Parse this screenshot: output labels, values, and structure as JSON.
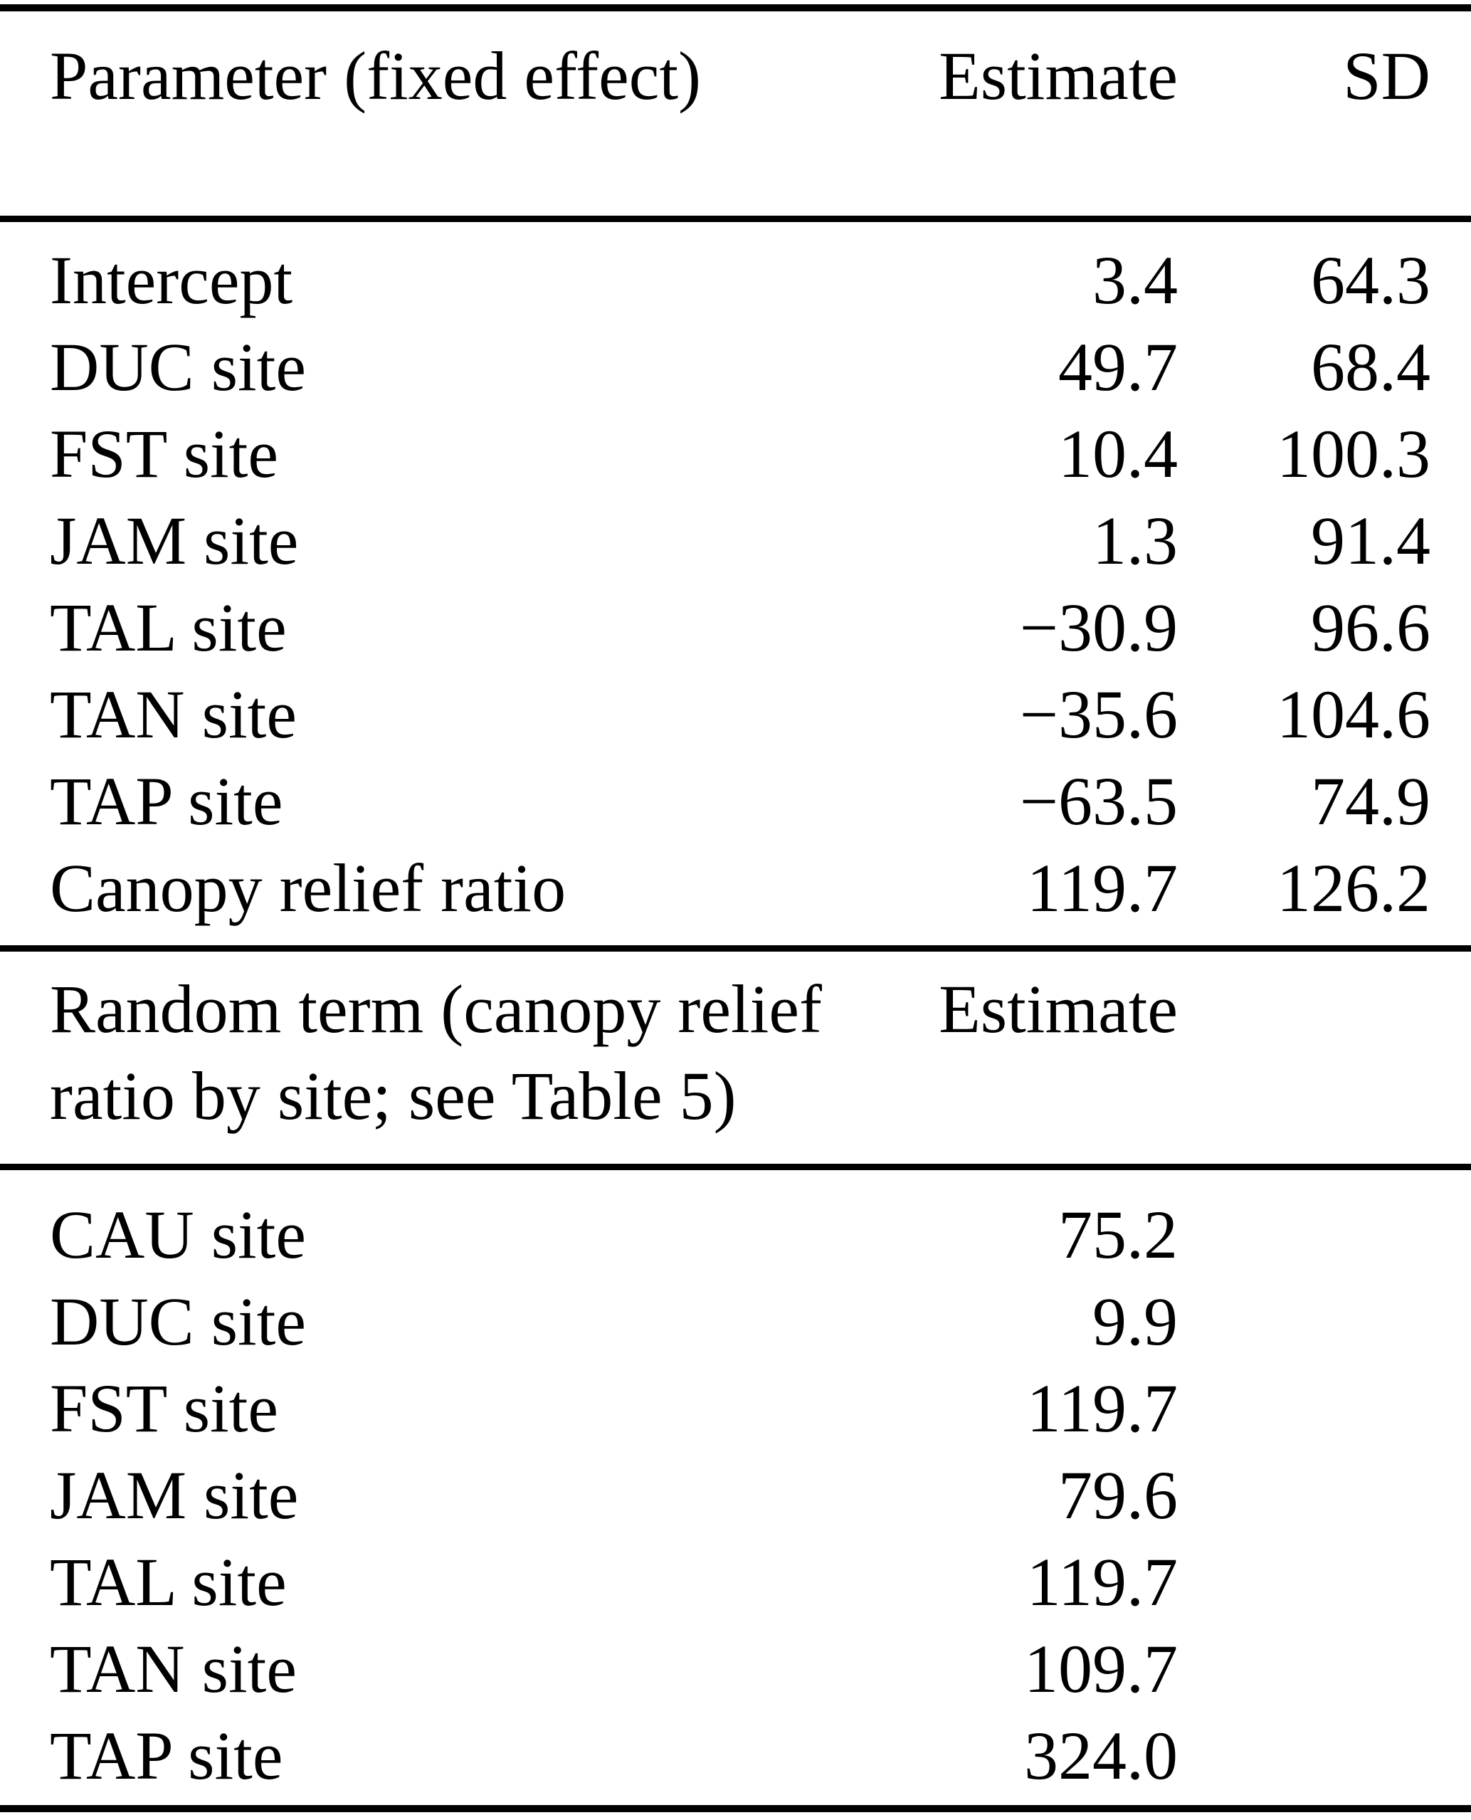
{
  "fixed_effects_table": {
    "headers": {
      "parameter": "Parameter (fixed effect)",
      "estimate": "Estimate",
      "sd": "SD"
    },
    "rows": [
      {
        "parameter": "Intercept",
        "estimate": "3.4",
        "sd": "64.3"
      },
      {
        "parameter": "DUC site",
        "estimate": "49.7",
        "sd": "68.4"
      },
      {
        "parameter": "FST site",
        "estimate": "10.4",
        "sd": "100.3"
      },
      {
        "parameter": "JAM site",
        "estimate": "1.3",
        "sd": "91.4"
      },
      {
        "parameter": "TAL site",
        "estimate": "−30.9",
        "sd": "96.6"
      },
      {
        "parameter": "TAN site",
        "estimate": "−35.6",
        "sd": "104.6"
      },
      {
        "parameter": "TAP site",
        "estimate": "−63.5",
        "sd": "74.9"
      },
      {
        "parameter": "Canopy relief ratio",
        "estimate": "119.7",
        "sd": "126.2"
      }
    ]
  },
  "random_terms_table": {
    "headers": {
      "term_line1": "Random term (canopy relief",
      "term_line2": "ratio by site; see Table 5)",
      "estimate": "Estimate"
    },
    "rows": [
      {
        "parameter": "CAU site",
        "estimate": "75.2"
      },
      {
        "parameter": "DUC site",
        "estimate": "9.9"
      },
      {
        "parameter": "FST site",
        "estimate": "119.7"
      },
      {
        "parameter": "JAM site",
        "estimate": "79.6"
      },
      {
        "parameter": "TAL site",
        "estimate": "119.7"
      },
      {
        "parameter": "TAN site",
        "estimate": "109.7"
      },
      {
        "parameter": "TAP site",
        "estimate": "324.0"
      }
    ]
  },
  "colors": {
    "background": "#ffffff",
    "text": "#000000",
    "rule": "#000000"
  }
}
